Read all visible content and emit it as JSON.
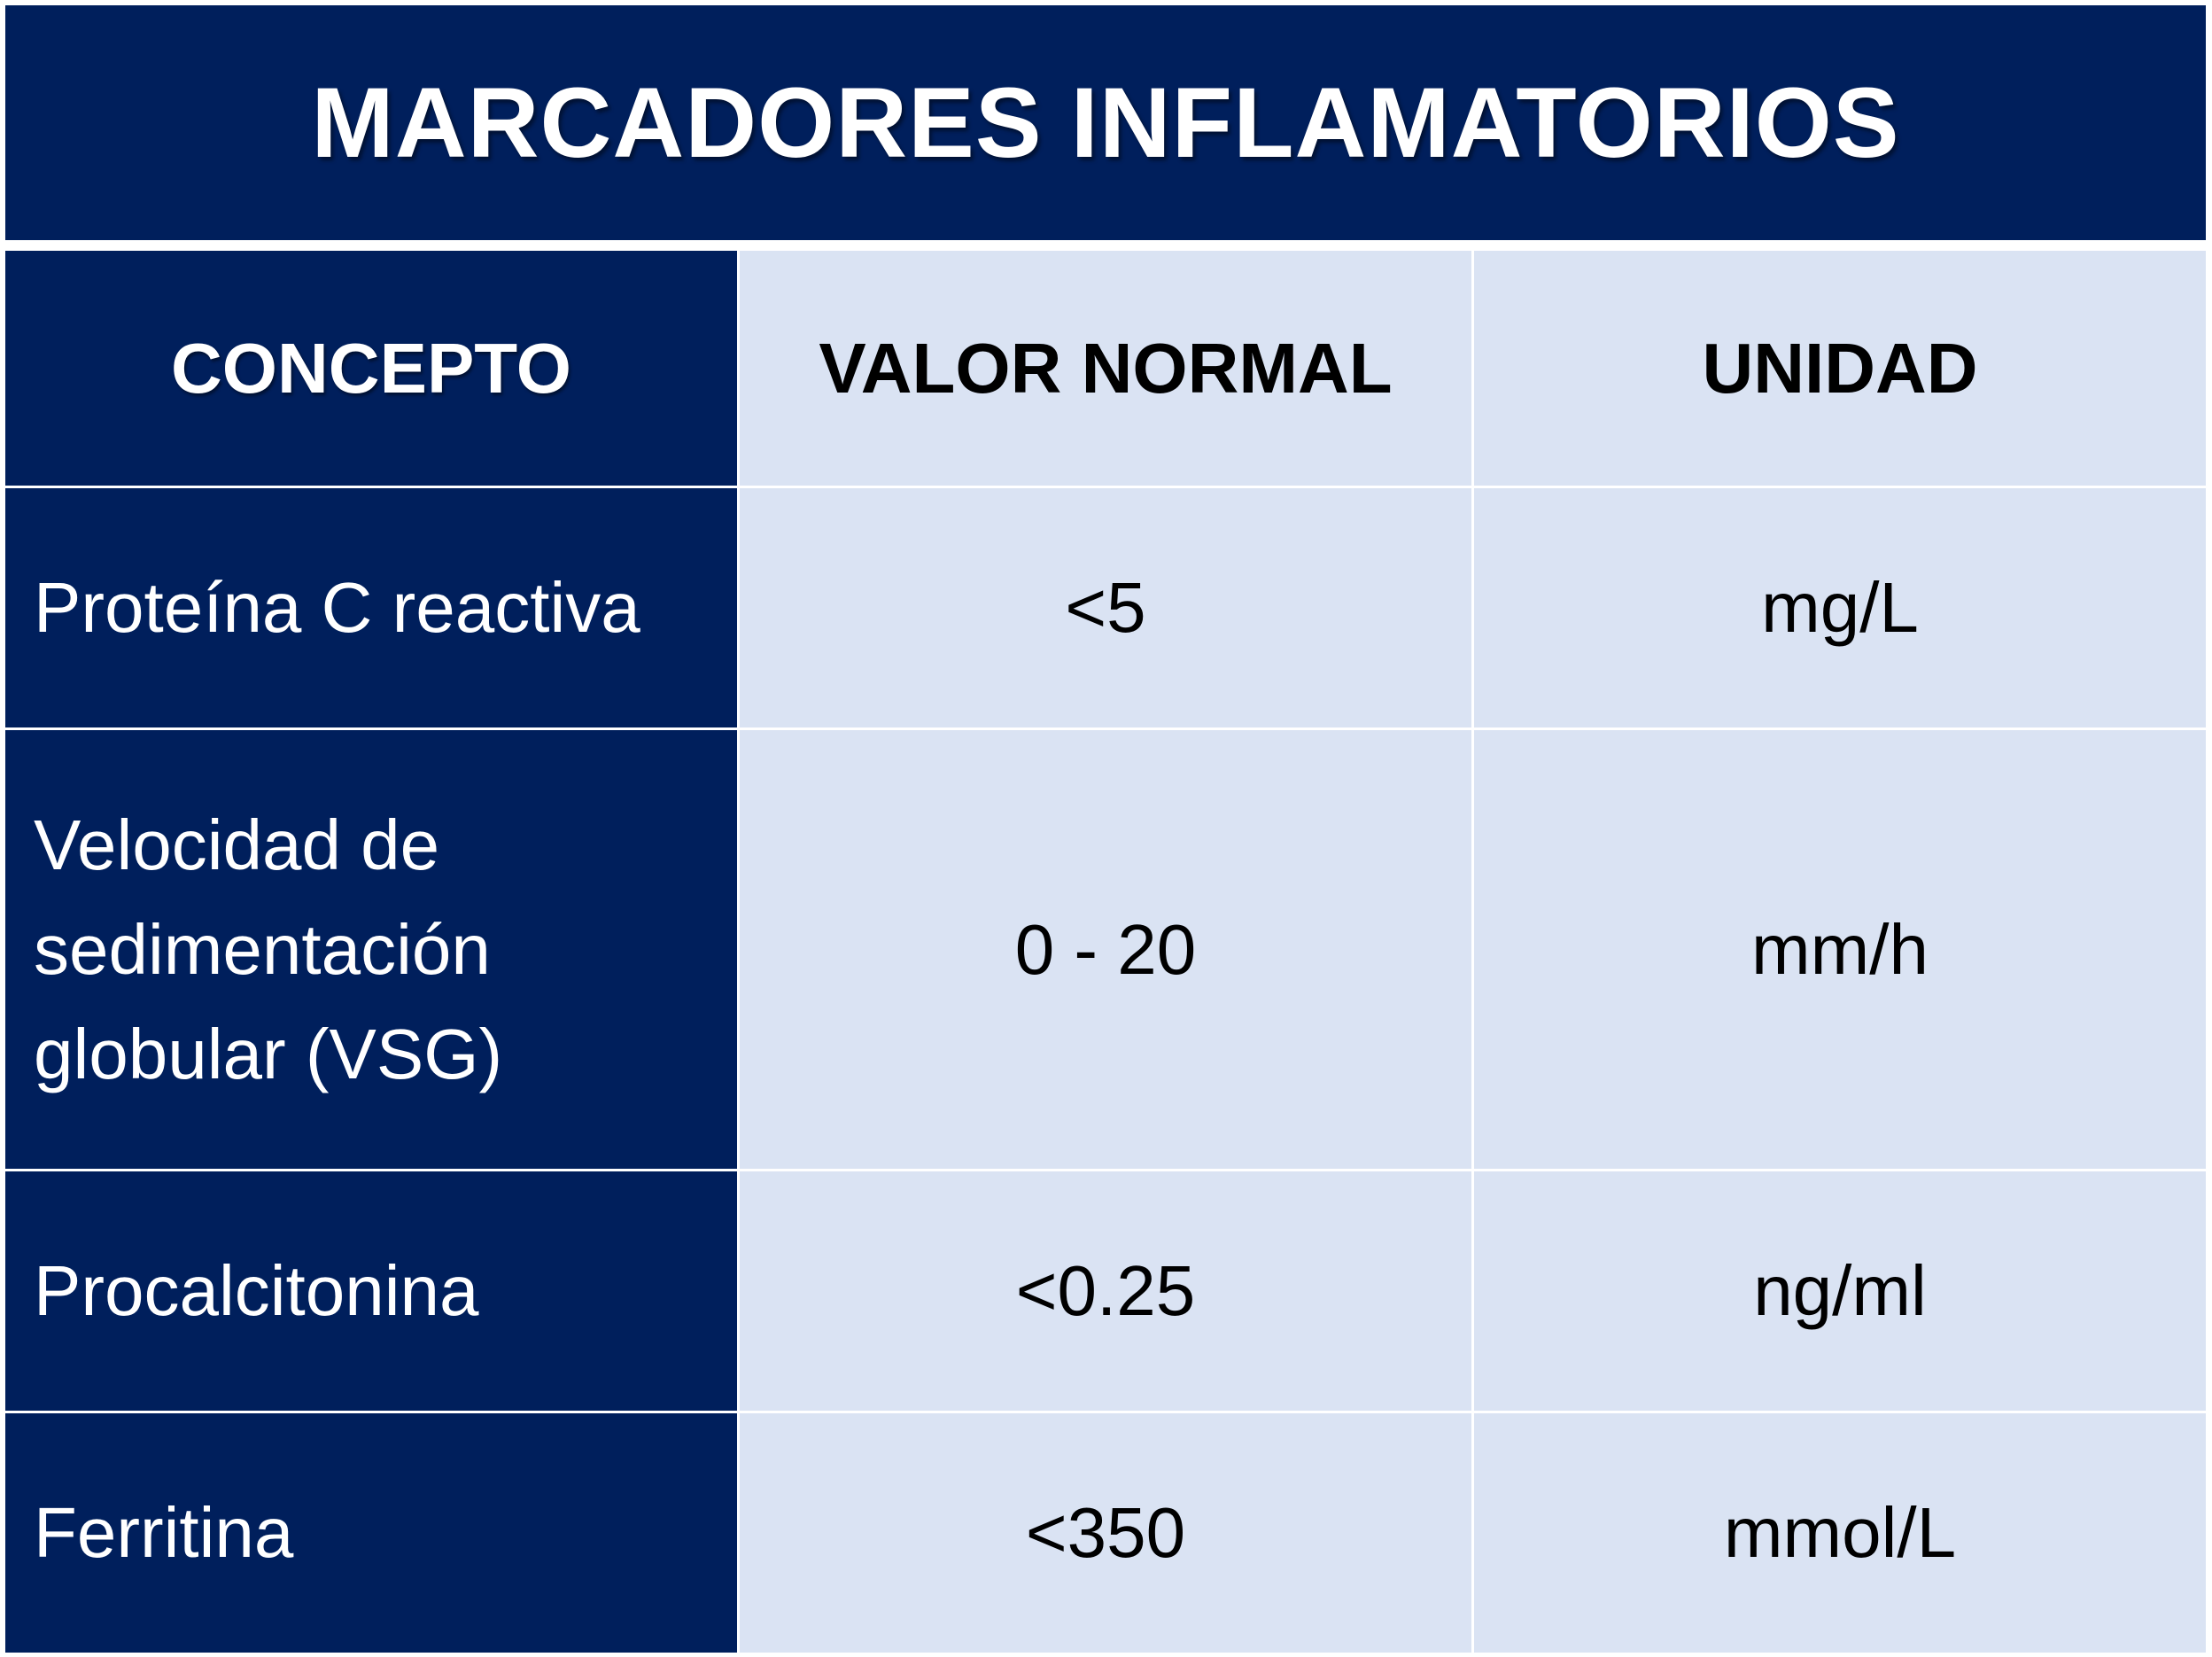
{
  "title": "MARCADORES INFLAMATORIOS",
  "colors": {
    "dark_blue": "#001f5c",
    "light_blue": "#dae3f3",
    "white": "#ffffff",
    "black": "#000000"
  },
  "table": {
    "headers": [
      "CONCEPTO",
      "VALOR NORMAL",
      "UNIDAD"
    ],
    "rows": [
      {
        "concepto": "Proteína C reactiva",
        "valor": "<5",
        "unidad": "mg/L"
      },
      {
        "concepto": "Velocidad de sedimentación globular (VSG)",
        "valor": "0 - 20",
        "unidad": "mm/h"
      },
      {
        "concepto": "Procalcitonina",
        "valor": "<0.25",
        "unidad": "ng/ml"
      },
      {
        "concepto": "Ferritina",
        "valor": "<350",
        "unidad": "mmol/L"
      }
    ]
  }
}
